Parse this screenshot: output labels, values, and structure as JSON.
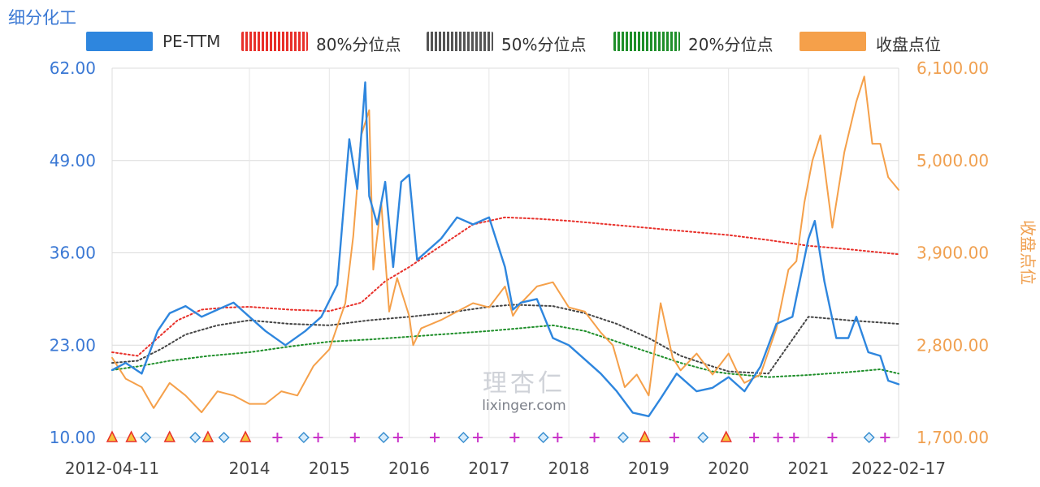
{
  "title": "细分化工",
  "legend": [
    {
      "label": "PE-TTM",
      "color": "#2e86de",
      "style": "solid"
    },
    {
      "label": "80%分位点",
      "color": "#e8302a",
      "style": "dotted"
    },
    {
      "label": "50%分位点",
      "color": "#555555",
      "style": "dotted"
    },
    {
      "label": "20%分位点",
      "color": "#1f8f2a",
      "style": "dotted"
    },
    {
      "label": "收盘点位",
      "color": "#f5a04a",
      "style": "solid"
    }
  ],
  "watermark": {
    "logo": "理杏仁",
    "url": "lixinger.com"
  },
  "chart_data": {
    "type": "line",
    "title": "细分化工",
    "xlabel": "",
    "ylabel_left": "",
    "ylabel_right": "收盘点位",
    "x_ticks": [
      "2012-04-11",
      "2014",
      "2015",
      "2016",
      "2017",
      "2018",
      "2019",
      "2020",
      "2021",
      "2022-02-17"
    ],
    "y_left_ticks": [
      "10.00",
      "23.00",
      "36.00",
      "49.00",
      "62.00"
    ],
    "y_right_ticks": [
      "1,700.00",
      "2,800.00",
      "3,900.00",
      "5,000.00",
      "6,100.00"
    ],
    "ylim_left": [
      10,
      62
    ],
    "ylim_right": [
      1700,
      6100
    ],
    "xlim": [
      2012.28,
      2022.13
    ],
    "grid": true,
    "series": [
      {
        "name": "PE-TTM",
        "axis": "left",
        "x": [
          2012.28,
          2012.45,
          2012.65,
          2012.85,
          2013.0,
          2013.2,
          2013.4,
          2013.6,
          2013.8,
          2014.0,
          2014.2,
          2014.45,
          2014.7,
          2014.9,
          2015.1,
          2015.25,
          2015.35,
          2015.45,
          2015.5,
          2015.6,
          2015.7,
          2015.8,
          2015.9,
          2016.0,
          2016.1,
          2016.2,
          2016.4,
          2016.6,
          2016.8,
          2017.0,
          2017.2,
          2017.3,
          2017.4,
          2017.6,
          2017.8,
          2018.0,
          2018.2,
          2018.4,
          2018.6,
          2018.8,
          2019.0,
          2019.15,
          2019.35,
          2019.6,
          2019.8,
          2020.0,
          2020.2,
          2020.4,
          2020.6,
          2020.8,
          2021.0,
          2021.08,
          2021.2,
          2021.35,
          2021.5,
          2021.6,
          2021.75,
          2021.9,
          2022.0,
          2022.13
        ],
        "y": [
          19.5,
          20.5,
          19.0,
          25.0,
          27.5,
          28.5,
          27.0,
          28.0,
          29.0,
          27.0,
          25.0,
          23.0,
          25.0,
          27.0,
          31.5,
          52.0,
          45.0,
          60.0,
          44.0,
          40.0,
          46.0,
          34.0,
          46.0,
          47.0,
          35.0,
          36.0,
          38.0,
          41.0,
          40.0,
          41.0,
          34.0,
          28.0,
          29.0,
          29.5,
          24.0,
          23.0,
          21.0,
          19.0,
          16.5,
          13.5,
          13.0,
          15.5,
          19.0,
          16.5,
          17.0,
          18.5,
          16.5,
          20.0,
          26.0,
          27.0,
          38.0,
          40.5,
          32.0,
          24.0,
          24.0,
          27.0,
          22.0,
          21.5,
          18.0,
          17.5
        ]
      },
      {
        "name": "80%分位点",
        "axis": "left",
        "x": [
          2012.28,
          2012.6,
          2012.85,
          2013.1,
          2013.4,
          2013.7,
          2014.0,
          2014.5,
          2015.0,
          2015.4,
          2015.7,
          2016.0,
          2016.4,
          2016.8,
          2017.2,
          2017.6,
          2018.0,
          2018.5,
          2019.0,
          2019.5,
          2020.0,
          2020.5,
          2021.0,
          2021.5,
          2022.13
        ],
        "y": [
          22.0,
          21.5,
          24.0,
          26.5,
          28.0,
          28.3,
          28.4,
          28.0,
          27.8,
          29.0,
          32.0,
          34.0,
          37.0,
          40.0,
          41.0,
          40.8,
          40.5,
          40.0,
          39.5,
          39.0,
          38.5,
          37.8,
          37.0,
          36.5,
          35.8
        ]
      },
      {
        "name": "50%分位点",
        "axis": "left",
        "x": [
          2012.28,
          2012.6,
          2012.9,
          2013.2,
          2013.6,
          2014.0,
          2014.5,
          2015.0,
          2015.5,
          2016.0,
          2016.5,
          2017.0,
          2017.3,
          2017.8,
          2018.2,
          2018.6,
          2019.0,
          2019.4,
          2019.8,
          2020.0,
          2020.5,
          2021.0,
          2021.5,
          2022.13
        ],
        "y": [
          20.5,
          20.8,
          22.5,
          24.5,
          25.8,
          26.5,
          26.0,
          25.8,
          26.5,
          27.0,
          27.6,
          28.4,
          28.7,
          28.5,
          27.5,
          26.0,
          24.0,
          21.5,
          20.0,
          19.3,
          19.0,
          27.0,
          26.5,
          26.0
        ]
      },
      {
        "name": "20%分位点",
        "axis": "left",
        "x": [
          2012.28,
          2012.6,
          2013.0,
          2013.5,
          2014.0,
          2014.5,
          2015.0,
          2015.5,
          2016.0,
          2016.5,
          2017.0,
          2017.5,
          2017.8,
          2018.2,
          2018.6,
          2019.0,
          2019.4,
          2019.8,
          2020.0,
          2020.5,
          2021.0,
          2021.5,
          2021.9,
          2022.13
        ],
        "y": [
          19.5,
          20.0,
          20.8,
          21.5,
          22.0,
          22.8,
          23.5,
          23.8,
          24.2,
          24.6,
          25.0,
          25.5,
          25.8,
          25.0,
          23.5,
          22.0,
          20.5,
          19.3,
          19.0,
          18.5,
          18.8,
          19.2,
          19.6,
          19.0
        ]
      },
      {
        "name": "收盘点位",
        "axis": "right",
        "x": [
          2012.28,
          2012.45,
          2012.65,
          2012.8,
          2013.0,
          2013.2,
          2013.4,
          2013.6,
          2013.8,
          2014.0,
          2014.2,
          2014.4,
          2014.6,
          2014.8,
          2015.0,
          2015.2,
          2015.3,
          2015.4,
          2015.5,
          2015.55,
          2015.65,
          2015.75,
          2015.85,
          2016.0,
          2016.05,
          2016.15,
          2016.4,
          2016.6,
          2016.8,
          2017.0,
          2017.2,
          2017.3,
          2017.4,
          2017.6,
          2017.8,
          2018.0,
          2018.2,
          2018.4,
          2018.55,
          2018.7,
          2018.85,
          2019.0,
          2019.15,
          2019.3,
          2019.4,
          2019.6,
          2019.8,
          2020.0,
          2020.1,
          2020.2,
          2020.4,
          2020.6,
          2020.75,
          2020.85,
          2020.95,
          2021.05,
          2021.15,
          2021.3,
          2021.45,
          2021.6,
          2021.7,
          2021.8,
          2021.9,
          2022.0,
          2022.13
        ],
        "y": [
          2650,
          2400,
          2300,
          2050,
          2350,
          2200,
          2000,
          2250,
          2200,
          2100,
          2100,
          2250,
          2200,
          2550,
          2750,
          3300,
          4100,
          5300,
          5600,
          3700,
          4500,
          3200,
          3600,
          3150,
          2800,
          3000,
          3100,
          3200,
          3300,
          3250,
          3500,
          3150,
          3300,
          3500,
          3550,
          3250,
          3200,
          2950,
          2800,
          2300,
          2450,
          2200,
          3300,
          2650,
          2500,
          2700,
          2450,
          2700,
          2500,
          2350,
          2450,
          3000,
          3700,
          3800,
          4500,
          5000,
          5300,
          4200,
          5100,
          5700,
          6000,
          5200,
          5200,
          4800,
          4650
        ]
      }
    ]
  },
  "markers": [
    {
      "type": "triangle",
      "x": 2012.28
    },
    {
      "type": "triangle",
      "x": 2012.52
    },
    {
      "type": "diamond",
      "x": 2012.7
    },
    {
      "type": "triangle",
      "x": 2013.0
    },
    {
      "type": "diamond",
      "x": 2013.32
    },
    {
      "type": "triangle",
      "x": 2013.48
    },
    {
      "type": "diamond",
      "x": 2013.68
    },
    {
      "type": "triangle",
      "x": 2013.95
    },
    {
      "type": "plus",
      "x": 2014.35
    },
    {
      "type": "diamond",
      "x": 2014.68
    },
    {
      "type": "plus",
      "x": 2014.86
    },
    {
      "type": "plus",
      "x": 2015.32
    },
    {
      "type": "diamond",
      "x": 2015.68
    },
    {
      "type": "plus",
      "x": 2015.86
    },
    {
      "type": "plus",
      "x": 2016.32
    },
    {
      "type": "diamond",
      "x": 2016.68
    },
    {
      "type": "plus",
      "x": 2016.86
    },
    {
      "type": "plus",
      "x": 2017.32
    },
    {
      "type": "diamond",
      "x": 2017.68
    },
    {
      "type": "plus",
      "x": 2017.86
    },
    {
      "type": "plus",
      "x": 2018.32
    },
    {
      "type": "diamond",
      "x": 2018.68
    },
    {
      "type": "triangle",
      "x": 2018.95
    },
    {
      "type": "plus",
      "x": 2019.32
    },
    {
      "type": "diamond",
      "x": 2019.68
    },
    {
      "type": "triangle",
      "x": 2019.97
    },
    {
      "type": "plus",
      "x": 2020.32
    },
    {
      "type": "plus",
      "x": 2020.62
    },
    {
      "type": "plus",
      "x": 2020.82
    },
    {
      "type": "plus",
      "x": 2021.3
    },
    {
      "type": "diamond",
      "x": 2021.76
    },
    {
      "type": "plus",
      "x": 2021.96
    }
  ]
}
